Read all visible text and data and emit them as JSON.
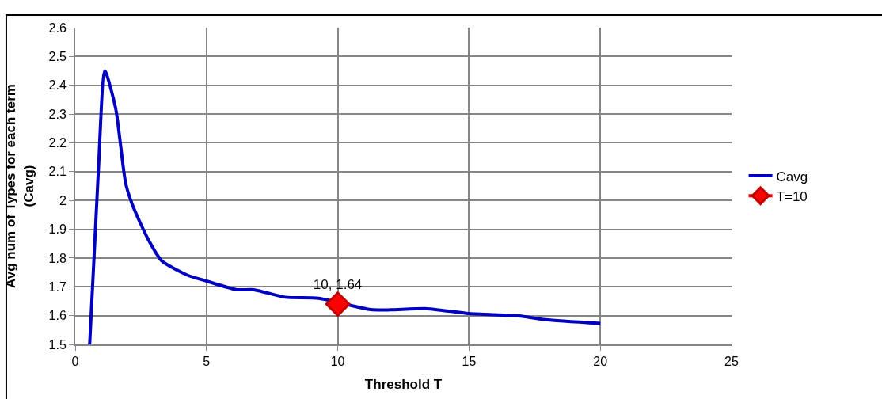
{
  "chart_data": {
    "type": "line",
    "xlabel": "Threshold T",
    "ylabel": "Avg num of Types for each term\n(Cavg)",
    "xlim": [
      0,
      25
    ],
    "xticks": [
      0,
      5,
      10,
      15,
      20,
      25
    ],
    "ylim": [
      1.5,
      2.6
    ],
    "yticks": [
      1.5,
      1.6,
      1.7,
      1.8,
      1.9,
      2,
      2.1,
      2.2,
      2.3,
      2.4,
      2.5,
      2.6
    ],
    "grid": true,
    "legend": "right",
    "line_style": "solid",
    "series": [
      {
        "name": "Cavg",
        "color": "#0000c0",
        "marker": "none",
        "x": [
          0.55,
          0.88,
          1.13,
          1.54,
          1.92,
          2.2,
          2.75,
          3.3,
          4.29,
          5,
          6.15,
          6.8,
          8,
          9.27,
          11.25,
          12,
          13.4,
          15,
          16.9,
          17.9,
          20
        ],
        "values": [
          1.5,
          2.1,
          2.45,
          2.32,
          2.06,
          1.98,
          1.87,
          1.79,
          1.74,
          1.72,
          1.69,
          1.69,
          1.664,
          1.66,
          1.621,
          1.62,
          1.624,
          1.607,
          1.599,
          1.586,
          1.573
        ]
      },
      {
        "name": "T=10",
        "color": "#ff0000",
        "marker": "diamond",
        "x": [
          10
        ],
        "values": [
          1.64
        ],
        "value_labels": [
          "10, 1.64"
        ]
      }
    ]
  }
}
